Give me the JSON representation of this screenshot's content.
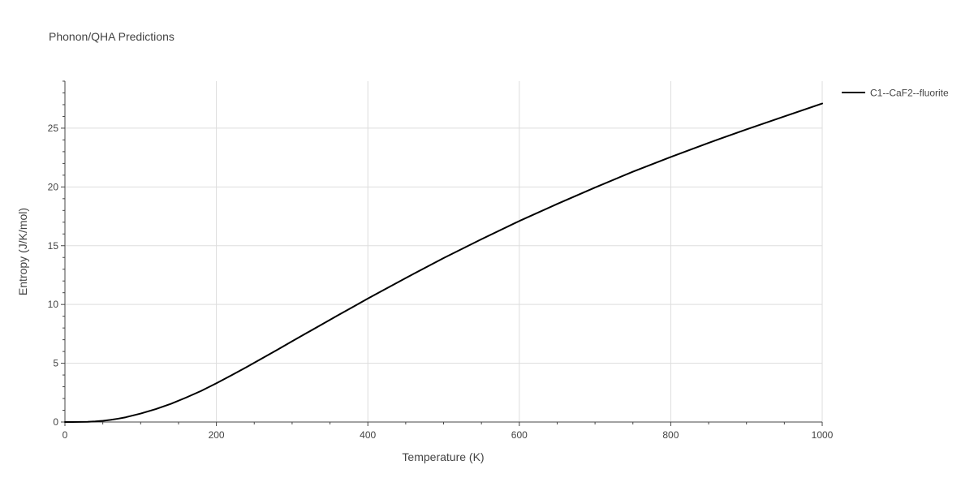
{
  "chart_data": {
    "type": "line",
    "title": "Phonon/QHA Predictions",
    "xlabel": "Temperature (K)",
    "ylabel": "Entropy (J/K/mol)",
    "xlim": [
      0,
      1000
    ],
    "ylim": [
      0,
      29
    ],
    "x_ticks": [
      0,
      200,
      400,
      600,
      800,
      1000
    ],
    "y_ticks": [
      0,
      5,
      10,
      15,
      20,
      25
    ],
    "grid": true,
    "legend_position": "top-right (outside plot)",
    "series": [
      {
        "name": "C1--CaF2--fluorite",
        "color": "#000000",
        "x": [
          0,
          10,
          20,
          30,
          40,
          50,
          60,
          70,
          80,
          100,
          120,
          140,
          160,
          180,
          200,
          220,
          240,
          260,
          280,
          300,
          320,
          340,
          360,
          380,
          400,
          420,
          450,
          500,
          550,
          600,
          650,
          700,
          750,
          800,
          850,
          900,
          950,
          1000
        ],
        "y": [
          0,
          0.0,
          0.01,
          0.02,
          0.05,
          0.1,
          0.18,
          0.28,
          0.4,
          0.72,
          1.1,
          1.55,
          2.08,
          2.65,
          3.3,
          3.98,
          4.68,
          5.4,
          6.13,
          6.87,
          7.6,
          8.33,
          9.06,
          9.78,
          10.5,
          11.2,
          12.25,
          13.95,
          15.55,
          17.1,
          18.55,
          19.95,
          21.3,
          22.55,
          23.75,
          24.9,
          26.0,
          27.1
        ]
      }
    ]
  }
}
